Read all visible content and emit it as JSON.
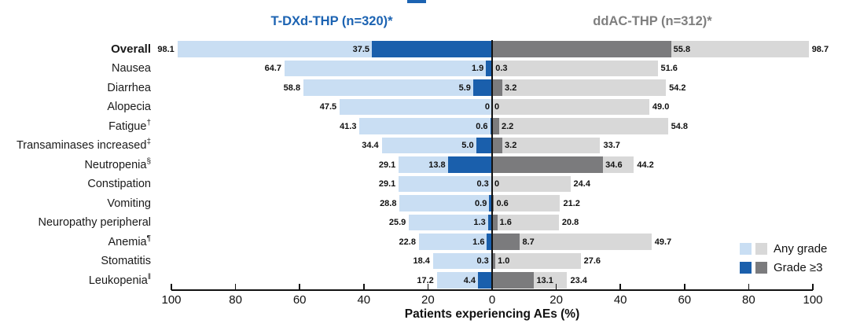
{
  "header": {
    "left_arm": "T-DXd-THP (n=320)*",
    "right_arm": "ddAC-THP (n=312)*"
  },
  "colors": {
    "tdxd_any": "#C9DEF3",
    "tdxd_g3": "#1A5FAC",
    "ddac_any": "#D8D8D8",
    "ddac_g3": "#7B7B7D",
    "header_left": "#1C63B2",
    "header_right": "#7F7F7F",
    "axis": "#111111"
  },
  "legend": {
    "items": [
      {
        "label": "Any grade",
        "swatches": [
          "tdxd_any",
          "ddac_any"
        ]
      },
      {
        "label": "Grade ≥3",
        "swatches": [
          "tdxd_g3",
          "ddac_g3"
        ]
      }
    ]
  },
  "chart_data": {
    "type": "bar",
    "subtype": "diverging_butterfly",
    "orientation": "horizontal",
    "title": "",
    "xlabel": "Patients experiencing AEs (%)",
    "unit": "%",
    "axis_ticks": [
      100,
      80,
      60,
      40,
      20,
      0,
      20,
      40,
      60,
      80,
      100
    ],
    "xlim_each_side": [
      0,
      100
    ],
    "grid": false,
    "legend_position": "lower-right",
    "arms": [
      {
        "name": "T-DXd-THP (n=320)*",
        "side": "left"
      },
      {
        "name": "ddAC-THP (n=312)*",
        "side": "right"
      }
    ],
    "series_names": [
      "Any grade",
      "Grade ≥3"
    ],
    "rows": [
      {
        "label": "Overall",
        "sup": "",
        "bold": true,
        "tdxd": {
          "any": 98.1,
          "any_text": "98.1",
          "g3": 37.5,
          "g3_text": "37.5"
        },
        "ddac": {
          "any": 98.7,
          "any_text": "98.7",
          "g3": 55.8,
          "g3_text": "55.8"
        }
      },
      {
        "label": "Nausea",
        "sup": "",
        "bold": false,
        "tdxd": {
          "any": 64.7,
          "any_text": "64.7",
          "g3": 1.9,
          "g3_text": "1.9"
        },
        "ddac": {
          "any": 51.6,
          "any_text": "51.6",
          "g3": 0.3,
          "g3_text": "0.3"
        }
      },
      {
        "label": "Diarrhea",
        "sup": "",
        "bold": false,
        "tdxd": {
          "any": 58.8,
          "any_text": "58.8",
          "g3": 5.9,
          "g3_text": "5.9"
        },
        "ddac": {
          "any": 54.2,
          "any_text": "54.2",
          "g3": 3.2,
          "g3_text": "3.2"
        }
      },
      {
        "label": "Alopecia",
        "sup": "",
        "bold": false,
        "tdxd": {
          "any": 47.5,
          "any_text": "47.5",
          "g3": 0,
          "g3_text": "0"
        },
        "ddac": {
          "any": 49.0,
          "any_text": "49.0",
          "g3": 0,
          "g3_text": "0"
        }
      },
      {
        "label": "Fatigue",
        "sup": "†",
        "bold": false,
        "tdxd": {
          "any": 41.3,
          "any_text": "41.3",
          "g3": 0.6,
          "g3_text": "0.6"
        },
        "ddac": {
          "any": 54.8,
          "any_text": "54.8",
          "g3": 2.2,
          "g3_text": "2.2"
        }
      },
      {
        "label": "Transaminases increased",
        "sup": "‡",
        "bold": false,
        "tdxd": {
          "any": 34.4,
          "any_text": "34.4",
          "g3": 5.0,
          "g3_text": "5.0"
        },
        "ddac": {
          "any": 33.7,
          "any_text": "33.7",
          "g3": 3.2,
          "g3_text": "3.2"
        }
      },
      {
        "label": "Neutropenia",
        "sup": "§",
        "bold": false,
        "tdxd": {
          "any": 29.1,
          "any_text": "29.1",
          "g3": 13.8,
          "g3_text": "13.8"
        },
        "ddac": {
          "any": 44.2,
          "any_text": "44.2",
          "g3": 34.6,
          "g3_text": "34.6"
        }
      },
      {
        "label": "Constipation",
        "sup": "",
        "bold": false,
        "tdxd": {
          "any": 29.1,
          "any_text": "29.1",
          "g3": 0.3,
          "g3_text": "0.3"
        },
        "ddac": {
          "any": 24.4,
          "any_text": "24.4",
          "g3": 0,
          "g3_text": "0"
        }
      },
      {
        "label": "Vomiting",
        "sup": "",
        "bold": false,
        "tdxd": {
          "any": 28.8,
          "any_text": "28.8",
          "g3": 0.9,
          "g3_text": "0.9"
        },
        "ddac": {
          "any": 21.2,
          "any_text": "21.2",
          "g3": 0.6,
          "g3_text": "0.6"
        }
      },
      {
        "label": "Neuropathy peripheral",
        "sup": "",
        "bold": false,
        "tdxd": {
          "any": 25.9,
          "any_text": "25.9",
          "g3": 1.3,
          "g3_text": "1.3"
        },
        "ddac": {
          "any": 20.8,
          "any_text": "20.8",
          "g3": 1.6,
          "g3_text": "1.6"
        }
      },
      {
        "label": "Anemia",
        "sup": "¶",
        "bold": false,
        "tdxd": {
          "any": 22.8,
          "any_text": "22.8",
          "g3": 1.6,
          "g3_text": "1.6"
        },
        "ddac": {
          "any": 49.7,
          "any_text": "49.7",
          "g3": 8.7,
          "g3_text": "8.7"
        }
      },
      {
        "label": "Stomatitis",
        "sup": "",
        "bold": false,
        "tdxd": {
          "any": 18.4,
          "any_text": "18.4",
          "g3": 0.3,
          "g3_text": "0.3"
        },
        "ddac": {
          "any": 27.6,
          "any_text": "27.6",
          "g3": 1.0,
          "g3_text": "1.0"
        }
      },
      {
        "label": "Leukopenia",
        "sup": "‖",
        "bold": false,
        "tdxd": {
          "any": 17.2,
          "any_text": "17.2",
          "g3": 4.4,
          "g3_text": "4.4"
        },
        "ddac": {
          "any": 23.4,
          "any_text": "23.4",
          "g3": 13.1,
          "g3_text": "13.1"
        }
      }
    ]
  }
}
